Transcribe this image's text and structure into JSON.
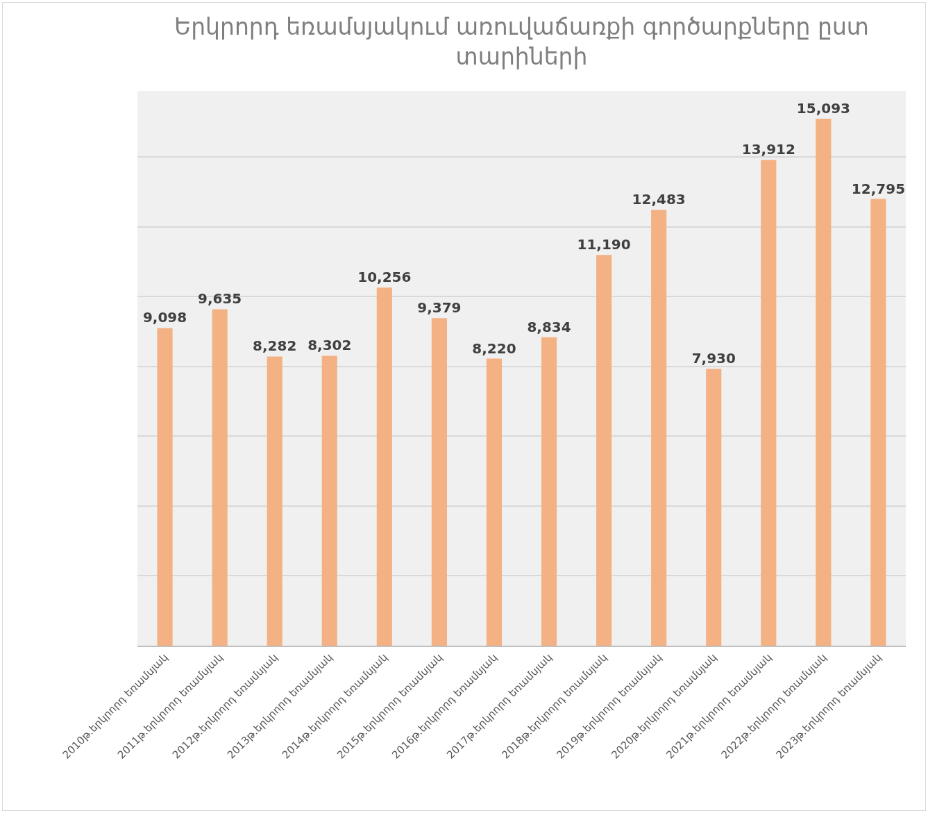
{
  "chart_data": {
    "type": "bar",
    "title": "Երկրորդ եռամսյակում առուվաճառքի գործարքները ըստ տարիների",
    "categories": [
      "2010թ.երկրորդ եռամսյակ",
      "2011թ.երկրորդ եռամսյակ",
      "2012թ.երկրորդ եռամսյակ",
      "2013թ.երկրորդ եռամսյակ",
      "2014թ.երկրորդ եռամսյակ",
      "2015թ.երկրորդ եռամսյակ",
      "2016թ.երկրորդ եռամսյակ",
      "2017թ.երկրորդ եռամսյակ",
      "2018թ.երկրորդ եռամսյակ",
      "2019թ.երկրորդ եռամսյակ",
      "2020թ.երկրորդ եռամսյակ",
      "2021թ.երկրորդ եռամսյակ",
      "2022թ.երկրորդ եռամսյակ",
      "2023թ.երկրորդ եռամսյակ"
    ],
    "values": [
      9098,
      9635,
      8282,
      8302,
      10256,
      9379,
      8220,
      8834,
      11190,
      12483,
      7930,
      13912,
      15093,
      12795
    ],
    "value_labels": [
      "9,098",
      "9,635",
      "8,282",
      "8,302",
      "10,256",
      "9,379",
      "8,220",
      "8,834",
      "11,190",
      "12,483",
      "7,930",
      "13,912",
      "15,093",
      "12,795"
    ],
    "color": "#f4b183",
    "grid": "y",
    "tick_labels": "x"
  }
}
